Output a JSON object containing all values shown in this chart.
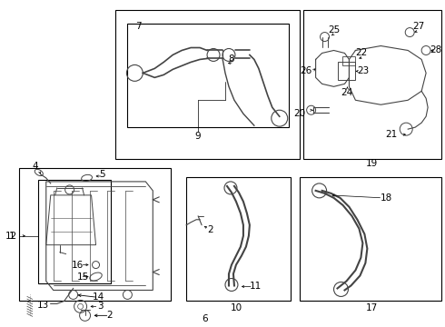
{
  "bg_color": "#ffffff",
  "lc": "#000000",
  "pc": "#444444",
  "font_size": 7.5,
  "boxes": {
    "res": [
      0.085,
      0.635,
      0.255,
      0.965
    ],
    "hose6": [
      0.26,
      0.525,
      0.675,
      0.975
    ],
    "hose7_inner": [
      0.285,
      0.555,
      0.655,
      0.875
    ],
    "thermo": [
      0.705,
      0.525,
      0.995,
      0.975
    ],
    "rad": [
      0.045,
      0.025,
      0.385,
      0.52
    ],
    "hose10": [
      0.425,
      0.13,
      0.655,
      0.52
    ],
    "hose17": [
      0.685,
      0.13,
      0.995,
      0.52
    ]
  }
}
